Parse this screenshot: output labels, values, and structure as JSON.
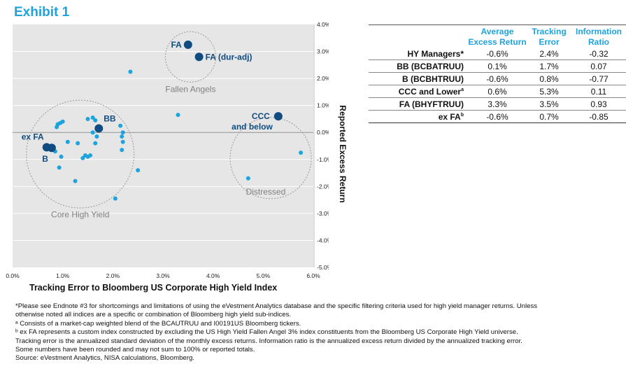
{
  "title": "Exhibit 1",
  "chart_data": {
    "type": "scatter",
    "xlabel": "Tracking Error to Bloomberg US Corporate High Yield Index",
    "ylabel": "Reported Excess Return",
    "xlim": [
      0,
      6
    ],
    "ylim": [
      -5,
      4
    ],
    "x_ticks": [
      "0.0%",
      "1.0%",
      "2.0%",
      "3.0%",
      "4.0%",
      "5.0%",
      "6.0%"
    ],
    "y_ticks": [
      "4.0%",
      "3.0%",
      "2.0%",
      "1.0%",
      "0.0%",
      "-1.0%",
      "-2.0%",
      "-3.0%",
      "-4.0%",
      "-5.0%"
    ],
    "managers": [
      [
        0.68,
        -0.5
      ],
      [
        0.76,
        -0.52
      ],
      [
        0.9,
        0.3
      ],
      [
        0.95,
        0.35
      ],
      [
        1.0,
        0.4
      ],
      [
        0.88,
        0.2
      ],
      [
        1.1,
        -0.35
      ],
      [
        0.85,
        -0.7
      ],
      [
        0.97,
        -0.9
      ],
      [
        0.93,
        -1.3
      ],
      [
        1.25,
        -1.8
      ],
      [
        1.3,
        -0.4
      ],
      [
        1.45,
        -0.85
      ],
      [
        1.5,
        -0.9
      ],
      [
        1.55,
        -0.85
      ],
      [
        1.4,
        -0.95
      ],
      [
        1.5,
        0.5
      ],
      [
        1.6,
        0.55
      ],
      [
        1.65,
        0.45
      ],
      [
        1.6,
        0.0
      ],
      [
        1.68,
        -0.15
      ],
      [
        1.65,
        -0.4
      ],
      [
        2.15,
        0.25
      ],
      [
        2.2,
        0.0
      ],
      [
        2.18,
        -0.15
      ],
      [
        2.2,
        -0.35
      ],
      [
        2.18,
        -0.65
      ],
      [
        2.5,
        -1.4
      ],
      [
        2.05,
        -2.45
      ],
      [
        3.3,
        0.65
      ],
      [
        2.35,
        2.25
      ],
      [
        4.7,
        -1.7
      ],
      [
        5.75,
        -0.75
      ]
    ],
    "indices": [
      {
        "name": "FA",
        "x": 3.5,
        "y": 3.25
      },
      {
        "name": "FA (dur-adj)",
        "x": 3.72,
        "y": 2.8
      },
      {
        "name": "BB",
        "x": 1.72,
        "y": 0.15
      },
      {
        "name": "ex FA",
        "x": 0.68,
        "y": -0.55
      },
      {
        "name": "B",
        "x": 0.78,
        "y": -0.57
      },
      {
        "name": "CCC and below",
        "x": 5.3,
        "y": 0.6
      }
    ],
    "annotations": [
      "Fallen Angels",
      "Core High Yield",
      "Distressed"
    ],
    "colors": {
      "managers": "#1ea3dc",
      "indices": "#0f4c81",
      "plot_bg": "#e6e6e6",
      "grid": "#ffffff",
      "circle": "#999999",
      "annotation": "#808080"
    }
  },
  "table": {
    "headers": [
      {
        "line1": "Average",
        "line2": "Excess Return"
      },
      {
        "line1": "Tracking",
        "line2": "Error"
      },
      {
        "line1": "Information",
        "line2": "Ratio"
      }
    ],
    "rows": [
      {
        "label": "HY Managers*",
        "sup": "",
        "ret": "-0.6%",
        "te": "2.4%",
        "ir": "-0.32"
      },
      {
        "label": "BB (BCBATRUU)",
        "sup": "",
        "ret": "0.1%",
        "te": "1.7%",
        "ir": "0.07"
      },
      {
        "label": "B (BCBHTRUU)",
        "sup": "",
        "ret": "-0.6%",
        "te": "0.8%",
        "ir": "-0.77"
      },
      {
        "label": "CCC and Lower",
        "sup": "a",
        "ret": "0.6%",
        "te": "5.3%",
        "ir": "0.11"
      },
      {
        "label": "FA (BHYFTRUU)",
        "sup": "",
        "ret": "3.3%",
        "te": "3.5%",
        "ir": "0.93"
      },
      {
        "label": "ex FA",
        "sup": "b",
        "ret": "-0.6%",
        "te": "0.7%",
        "ir": "-0.85"
      }
    ]
  },
  "notes": [
    "*Please see Endnote #3 for shortcomings and limitations of using the eVestment Analytics database and the specific filtering criteria used for high yield manager returns. Unless",
    "otherwise noted all indices are a specific or combination of Bloomberg high yield sub-indices.",
    "ᵃ Consists of a market-cap weighted blend of the BCAUTRUU and I00191US Bloomberg tickers.",
    "ᵇ ex FA represents a custom index constructed by excluding the US High Yield Fallen Angel 3% index constituents from the Bloomberg US Corporate High Yield universe.",
    "Tracking error is the annualized standard deviation of the monthly excess returns. Information ratio is the annualized excess return divided by the annualized tracking error.",
    "Some numbers have been rounded and may not sum to 100% or reported totals.",
    "Source: eVestment Analytics, NISA calculations, Bloomberg."
  ]
}
